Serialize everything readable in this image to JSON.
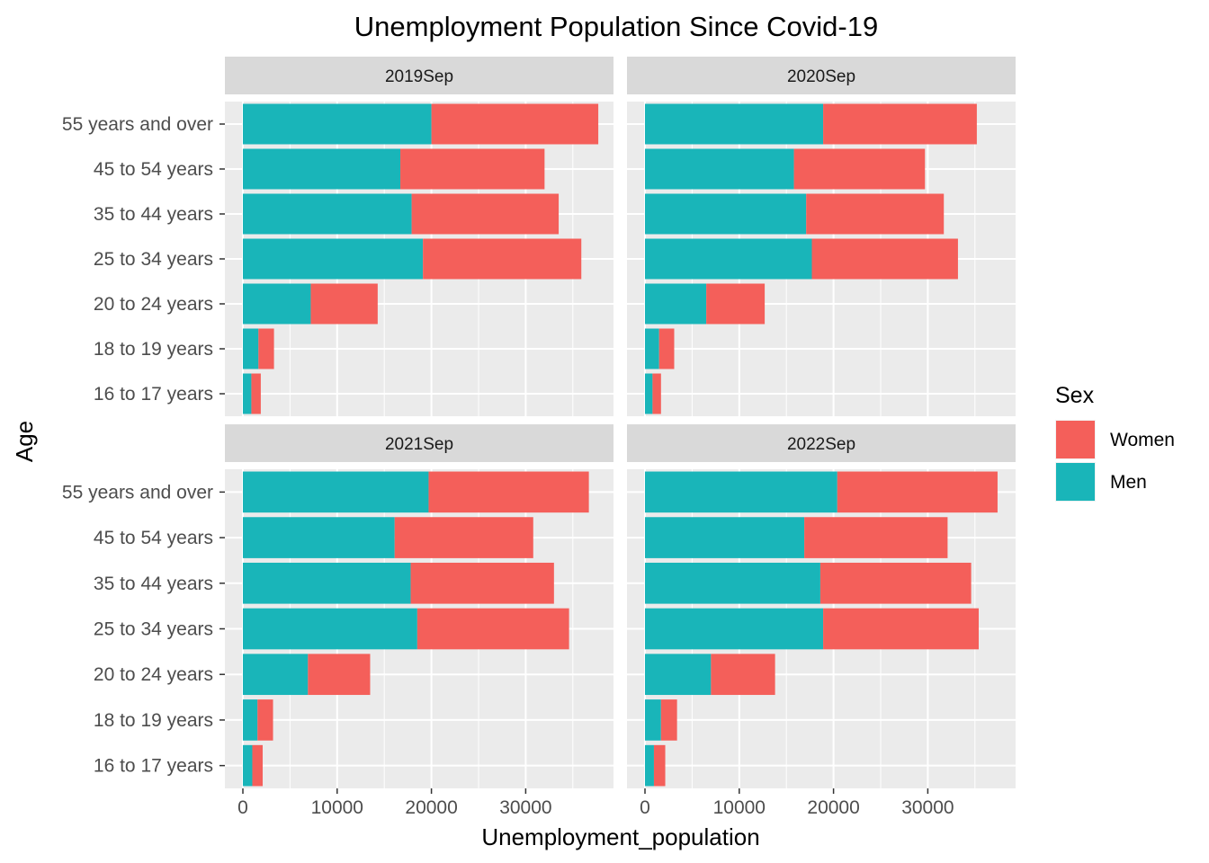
{
  "chart_data": {
    "type": "bar",
    "orientation": "horizontal",
    "stacked": true,
    "title": "Unemployment Population Since Covid-19",
    "xlabel": "Unemployment_population",
    "ylabel": "Age",
    "xlim": [
      0,
      37500
    ],
    "xticks": [
      0,
      10000,
      20000,
      30000
    ],
    "categories": [
      "16 to 17 years",
      "18 to 19 years",
      "20 to 24 years",
      "25 to 34 years",
      "35 to 44 years",
      "45 to 54 years",
      "55 years and over"
    ],
    "legend": {
      "title": "Sex",
      "position": "right",
      "entries": [
        {
          "label": "Women",
          "color": "#f8766d"
        },
        {
          "label": "Men",
          "color": "#00bfc4"
        }
      ]
    },
    "colors": {
      "Men": "#19b5b9",
      "Women": "#f45f5a"
    },
    "grid": true,
    "panels": [
      {
        "facet": "2019Sep",
        "series": [
          {
            "name": "Men",
            "values": [
              900,
              1650,
              7200,
              19100,
              17900,
              16700,
              20000
            ]
          },
          {
            "name": "Women",
            "values": [
              1000,
              1650,
              7100,
              16800,
              15600,
              15300,
              17700
            ]
          }
        ]
      },
      {
        "facet": "2020Sep",
        "series": [
          {
            "name": "Men",
            "values": [
              800,
              1500,
              6500,
              17700,
              17100,
              15800,
              18900
            ]
          },
          {
            "name": "Women",
            "values": [
              900,
              1600,
              6200,
              15500,
              14600,
              13900,
              16300
            ]
          }
        ]
      },
      {
        "facet": "2021Sep",
        "series": [
          {
            "name": "Men",
            "values": [
              1000,
              1550,
              6900,
              18500,
              17800,
              16100,
              19700
            ]
          },
          {
            "name": "Women",
            "values": [
              1100,
              1650,
              6600,
              16100,
              15200,
              14700,
              17000
            ]
          }
        ]
      },
      {
        "facet": "2022Sep",
        "series": [
          {
            "name": "Men",
            "values": [
              950,
              1700,
              7000,
              18900,
              18600,
              16900,
              20400
            ]
          },
          {
            "name": "Women",
            "values": [
              1200,
              1700,
              6800,
              16500,
              16000,
              15200,
              17000
            ]
          }
        ]
      }
    ]
  }
}
